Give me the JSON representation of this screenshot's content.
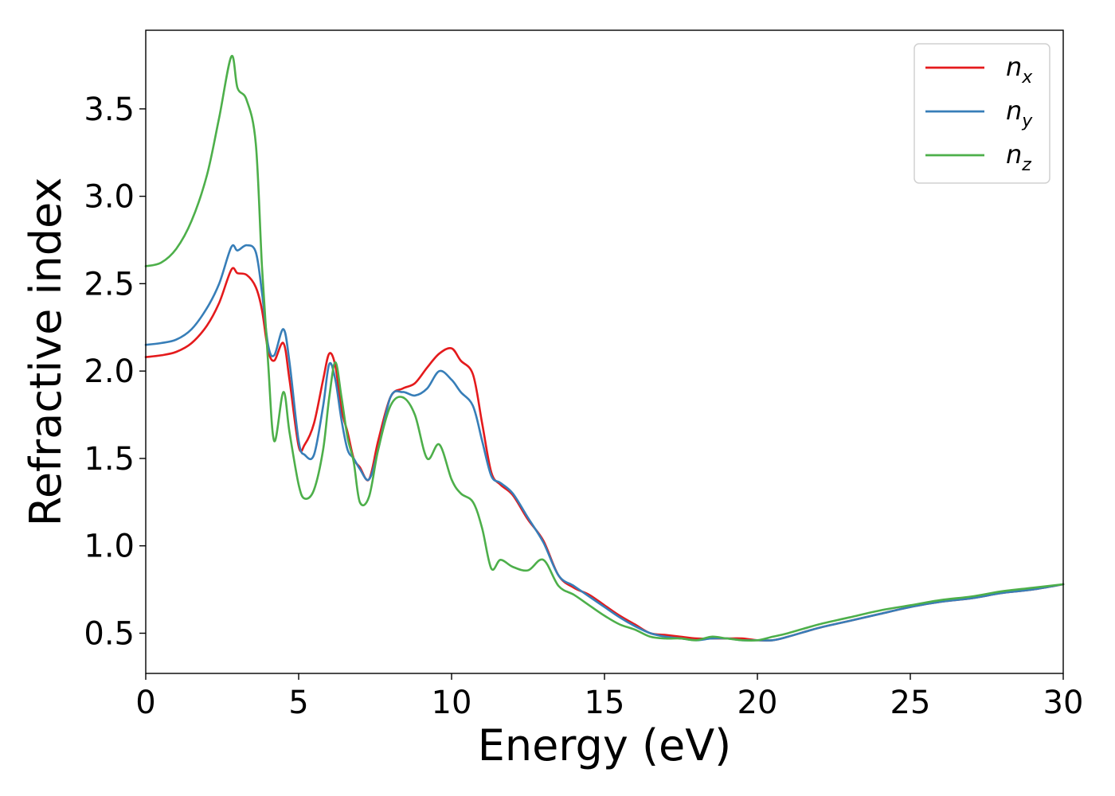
{
  "chart_data": {
    "type": "line",
    "title": "",
    "xlabel": "Energy (eV)",
    "ylabel": "Refractive index",
    "xlim": [
      0,
      30
    ],
    "ylim": [
      0.27,
      3.95
    ],
    "xticks": [
      0,
      5,
      10,
      15,
      20,
      25,
      30
    ],
    "xtick_labels": [
      "0",
      "5",
      "10",
      "15",
      "20",
      "25",
      "30"
    ],
    "yticks": [
      0.5,
      1.0,
      1.5,
      2.0,
      2.5,
      3.0,
      3.5
    ],
    "ytick_labels": [
      "0.5",
      "1.0",
      "1.5",
      "2.0",
      "2.5",
      "3.0",
      "3.5"
    ],
    "grid": false,
    "legend_position": "top-right",
    "series": [
      {
        "name": "n_x",
        "legend_base": "n",
        "legend_sub": "x",
        "color": "#e41a1c",
        "x": [
          0,
          0.5,
          1,
          1.5,
          2,
          2.4,
          2.8,
          3.0,
          3.3,
          3.6,
          3.8,
          4.0,
          4.2,
          4.5,
          4.7,
          5.0,
          5.2,
          5.5,
          5.8,
          6.0,
          6.2,
          6.4,
          6.6,
          6.8,
          7.0,
          7.3,
          7.6,
          8.0,
          8.4,
          8.8,
          9.2,
          9.6,
          10.0,
          10.3,
          10.7,
          11.0,
          11.3,
          11.6,
          12.0,
          12.5,
          13.0,
          13.5,
          14.0,
          14.5,
          15.0,
          15.5,
          16.0,
          16.5,
          17.0,
          17.5,
          18.0,
          18.5,
          19.0,
          19.5,
          20.0,
          20.5,
          21.0,
          22.0,
          23.0,
          24.0,
          25.0,
          26.0,
          27.0,
          28.0,
          29.0,
          30.0
        ],
        "y": [
          2.08,
          2.09,
          2.11,
          2.16,
          2.26,
          2.39,
          2.58,
          2.56,
          2.55,
          2.48,
          2.35,
          2.12,
          2.06,
          2.16,
          1.95,
          1.57,
          1.58,
          1.7,
          1.95,
          2.1,
          2.03,
          1.78,
          1.65,
          1.5,
          1.45,
          1.38,
          1.6,
          1.85,
          1.9,
          1.93,
          2.02,
          2.1,
          2.13,
          2.06,
          1.98,
          1.7,
          1.42,
          1.35,
          1.29,
          1.15,
          1.03,
          0.83,
          0.76,
          0.72,
          0.66,
          0.6,
          0.55,
          0.5,
          0.49,
          0.48,
          0.47,
          0.47,
          0.47,
          0.47,
          0.46,
          0.46,
          0.48,
          0.53,
          0.57,
          0.61,
          0.65,
          0.68,
          0.7,
          0.73,
          0.75,
          0.78
        ]
      },
      {
        "name": "n_y",
        "legend_base": "n",
        "legend_sub": "y",
        "color": "#377eb8",
        "x": [
          0,
          0.5,
          1,
          1.5,
          2,
          2.4,
          2.8,
          3.0,
          3.3,
          3.6,
          3.8,
          4.0,
          4.2,
          4.5,
          4.7,
          5.0,
          5.2,
          5.5,
          5.8,
          6.0,
          6.2,
          6.4,
          6.6,
          6.8,
          7.0,
          7.3,
          7.6,
          8.0,
          8.4,
          8.8,
          9.2,
          9.6,
          10.0,
          10.3,
          10.7,
          11.0,
          11.3,
          11.6,
          12.0,
          12.5,
          13.0,
          13.5,
          14.0,
          14.5,
          15.0,
          15.5,
          16.0,
          16.5,
          17.0,
          17.5,
          18.0,
          18.5,
          19.0,
          19.5,
          20.0,
          20.5,
          21.0,
          22.0,
          23.0,
          24.0,
          25.0,
          26.0,
          27.0,
          28.0,
          29.0,
          30.0
        ],
        "y": [
          2.15,
          2.16,
          2.18,
          2.24,
          2.36,
          2.5,
          2.71,
          2.69,
          2.72,
          2.68,
          2.45,
          2.15,
          2.09,
          2.24,
          2.05,
          1.6,
          1.52,
          1.52,
          1.8,
          2.04,
          1.95,
          1.72,
          1.55,
          1.5,
          1.44,
          1.38,
          1.55,
          1.85,
          1.88,
          1.86,
          1.9,
          2.0,
          1.95,
          1.88,
          1.8,
          1.6,
          1.4,
          1.36,
          1.3,
          1.16,
          1.02,
          0.83,
          0.77,
          0.71,
          0.65,
          0.59,
          0.54,
          0.5,
          0.48,
          0.47,
          0.46,
          0.47,
          0.47,
          0.46,
          0.46,
          0.46,
          0.48,
          0.53,
          0.57,
          0.61,
          0.65,
          0.68,
          0.7,
          0.73,
          0.75,
          0.78
        ]
      },
      {
        "name": "n_z",
        "legend_base": "n",
        "legend_sub": "z",
        "color": "#4daf4a",
        "x": [
          0,
          0.5,
          1,
          1.5,
          2,
          2.4,
          2.8,
          3.0,
          3.3,
          3.6,
          3.8,
          4.0,
          4.2,
          4.5,
          4.7,
          5.0,
          5.2,
          5.5,
          5.8,
          6.0,
          6.2,
          6.4,
          6.6,
          6.8,
          7.0,
          7.3,
          7.6,
          8.0,
          8.4,
          8.8,
          9.2,
          9.6,
          10.0,
          10.3,
          10.7,
          11.0,
          11.3,
          11.6,
          12.0,
          12.5,
          13.0,
          13.5,
          14.0,
          14.5,
          15.0,
          15.5,
          16.0,
          16.5,
          17.0,
          17.5,
          18.0,
          18.5,
          19.0,
          19.5,
          20.0,
          20.5,
          21.0,
          22.0,
          23.0,
          24.0,
          25.0,
          26.0,
          27.0,
          28.0,
          29.0,
          30.0
        ],
        "y": [
          2.6,
          2.62,
          2.7,
          2.86,
          3.12,
          3.45,
          3.8,
          3.62,
          3.55,
          3.3,
          2.6,
          2.05,
          1.6,
          1.88,
          1.65,
          1.35,
          1.27,
          1.32,
          1.55,
          1.85,
          2.05,
          1.85,
          1.62,
          1.48,
          1.25,
          1.28,
          1.55,
          1.8,
          1.85,
          1.75,
          1.5,
          1.58,
          1.38,
          1.3,
          1.25,
          1.1,
          0.87,
          0.92,
          0.88,
          0.86,
          0.92,
          0.77,
          0.72,
          0.66,
          0.6,
          0.55,
          0.52,
          0.48,
          0.47,
          0.47,
          0.46,
          0.48,
          0.47,
          0.46,
          0.46,
          0.48,
          0.5,
          0.55,
          0.59,
          0.63,
          0.66,
          0.69,
          0.71,
          0.74,
          0.76,
          0.78
        ]
      }
    ]
  }
}
